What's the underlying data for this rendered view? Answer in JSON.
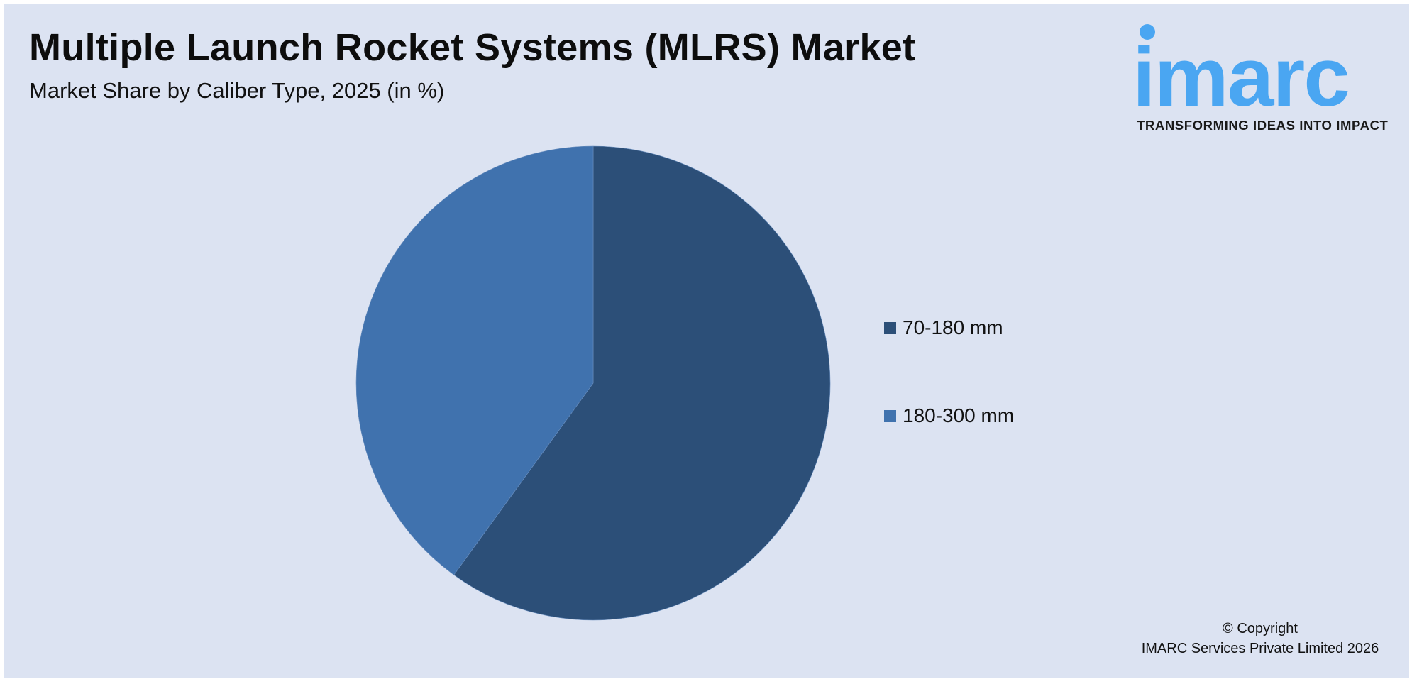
{
  "header": {
    "title": "Multiple Launch Rocket Systems (MLRS) Market",
    "subtitle": "Market Share by Caliber Type, 2025 (in %)"
  },
  "logo": {
    "word": "imarc",
    "tagline": "TRANSFORMING IDEAS INTO IMPACT",
    "color": "#4aa6f2"
  },
  "legend": {
    "items": [
      {
        "label": "70-180 mm",
        "color": "#2c4f78"
      },
      {
        "label": "180-300 mm",
        "color": "#4072ae"
      }
    ]
  },
  "footer": {
    "copyright_line1": "© Copyright",
    "copyright_line2": "IMARC Services Private Limited 2026"
  },
  "colors": {
    "background": "#dce3f2",
    "slice_1": "#2c4f78",
    "slice_2": "#4072ae"
  },
  "chart_data": {
    "type": "pie",
    "title": "Multiple Launch Rocket Systems (MLRS) Market",
    "subtitle": "Market Share by Caliber Type, 2025 (in %)",
    "categories": [
      "70-180 mm",
      "180-300 mm"
    ],
    "values": [
      60,
      40
    ],
    "colors": [
      "#2c4f78",
      "#4072ae"
    ],
    "start_angle": "12 o'clock, clockwise",
    "legend_position": "right",
    "data_labels": false
  }
}
